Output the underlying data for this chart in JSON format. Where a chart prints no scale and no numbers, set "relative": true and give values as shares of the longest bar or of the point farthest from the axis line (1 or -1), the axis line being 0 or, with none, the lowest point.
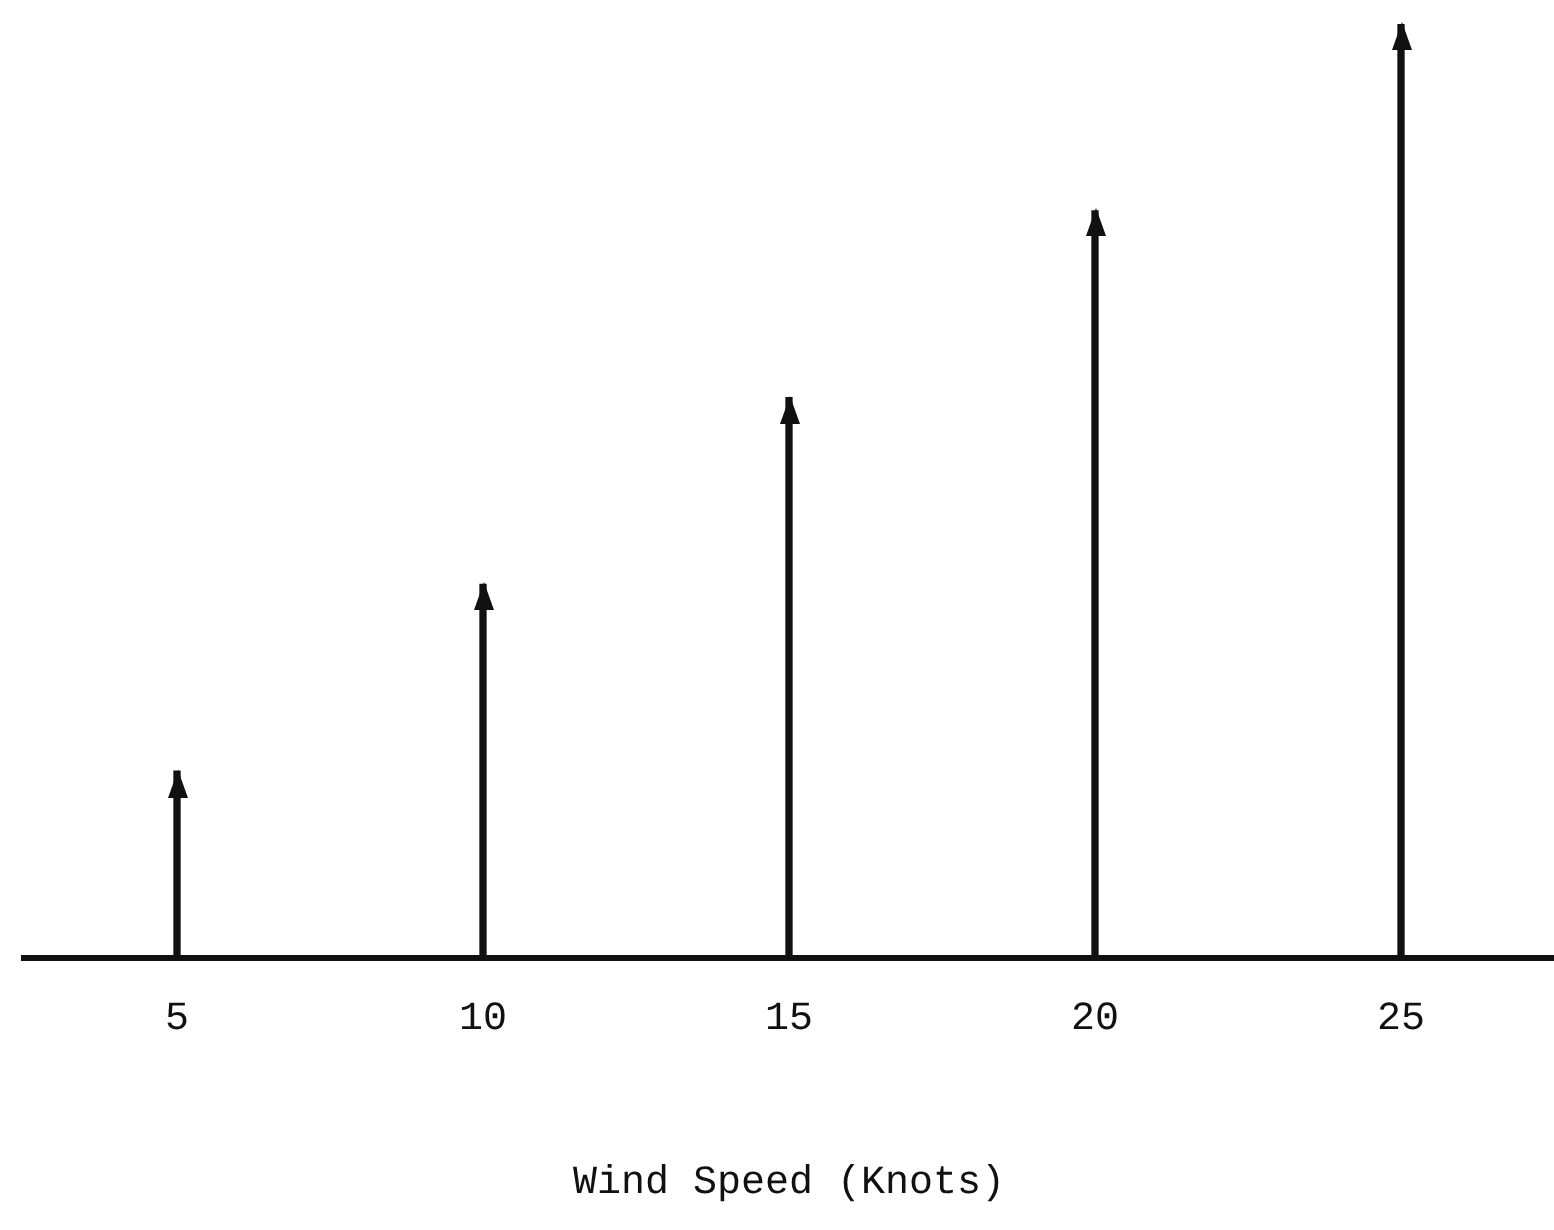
{
  "chart_data": {
    "type": "bar",
    "xlabel": "Wind Speed (Knots)",
    "categories": [
      "5",
      "10",
      "15",
      "20",
      "25"
    ],
    "values": [
      0.2,
      0.4,
      0.6,
      0.8,
      1.0
    ],
    "color": "#111111",
    "relative": true,
    "grid": false,
    "legend": false
  }
}
